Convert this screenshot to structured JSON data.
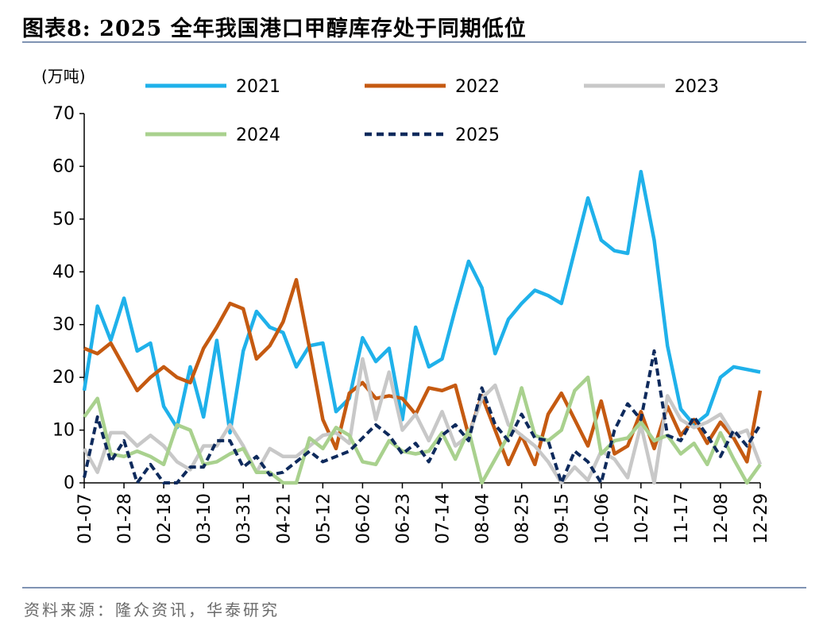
{
  "header": {
    "title": "图表8:   2025 全年我国港口甲醇库存处于同期低位"
  },
  "footer": {
    "source": "资料来源：隆众资讯，华泰研究"
  },
  "colors": {
    "rule": "#7f93b3",
    "s2021": "#1fb1ea",
    "s2022": "#c55a11",
    "s2023": "#c8c8c8",
    "s2024": "#a9d18e",
    "s2025": "#0e2a5c"
  },
  "chart_data": {
    "type": "line",
    "title": "",
    "xlabel": "",
    "ylabel": "(万吨)",
    "ylim": [
      0,
      70
    ],
    "yticks": [
      0,
      10,
      20,
      30,
      40,
      50,
      60,
      70
    ],
    "grid": false,
    "legend_position": "top",
    "x_ticks": [
      "01-07",
      "01-28",
      "02-18",
      "03-10",
      "03-31",
      "04-21",
      "05-12",
      "06-02",
      "06-23",
      "07-14",
      "08-04",
      "08-25",
      "09-15",
      "10-06",
      "10-27",
      "11-17",
      "12-08",
      "12-29"
    ],
    "series": [
      {
        "name": "2021",
        "color": "#1fb1ea",
        "dash": "solid",
        "values": [
          17.5,
          33.5,
          27,
          35,
          25,
          26.5,
          14.5,
          10.5,
          22,
          12.5,
          27,
          9.5,
          25,
          32.5,
          29.5,
          28.5,
          22,
          26,
          26.5,
          13.5,
          16,
          27.5,
          23,
          25.5,
          12,
          29.5,
          22,
          23.5,
          33,
          42,
          37,
          24.5,
          31,
          34,
          36.5,
          35.5,
          34,
          44,
          54,
          46,
          44,
          43.5,
          59,
          46,
          26,
          14,
          11,
          13,
          20,
          22,
          21.5,
          21
        ]
      },
      {
        "name": "2022",
        "color": "#c55a11",
        "dash": "solid",
        "values": [
          25.5,
          24.5,
          26.5,
          22,
          17.5,
          20,
          22,
          20,
          19,
          25.5,
          29.5,
          34,
          33,
          23.5,
          26,
          30.5,
          38.5,
          25.5,
          12,
          6.5,
          17,
          19,
          16,
          16.5,
          16,
          13,
          18,
          17.5,
          18.5,
          9,
          16.5,
          10,
          3.5,
          9,
          3.5,
          13,
          17,
          12,
          7,
          15.5,
          5.5,
          7,
          13.5,
          6.5,
          14.5,
          9,
          12,
          7.5,
          11.5,
          8.5,
          4,
          17.5
        ]
      },
      {
        "name": "2023",
        "color": "#c8c8c8",
        "dash": "solid",
        "values": [
          6.5,
          2,
          9.5,
          9.5,
          7,
          9,
          7,
          4,
          2.5,
          7,
          7,
          11,
          7,
          2,
          6.5,
          5,
          5,
          7,
          9,
          9.5,
          7.5,
          23.5,
          12,
          21,
          10,
          13,
          8,
          13.5,
          7,
          9,
          16,
          18.5,
          11,
          9,
          7,
          4,
          0,
          3,
          0.5,
          6,
          4.5,
          1,
          11,
          0,
          16.5,
          12,
          10.5,
          11.5,
          13,
          9,
          10,
          3.5
        ]
      },
      {
        "name": "2024",
        "color": "#a9d18e",
        "dash": "solid",
        "values": [
          12.5,
          16,
          5.5,
          5,
          6,
          5,
          3.5,
          11,
          10,
          3.5,
          4,
          5.5,
          6.5,
          2,
          2,
          0,
          0,
          8.5,
          6.5,
          10.5,
          9,
          4,
          3.5,
          8,
          6,
          5.5,
          6,
          9.5,
          4.5,
          10,
          0,
          4.5,
          9,
          18,
          9,
          8,
          10,
          17.5,
          20,
          5.5,
          8,
          8.5,
          11.5,
          8,
          9,
          5.5,
          7.5,
          3.5,
          9.5,
          4.5,
          0,
          3.5
        ]
      },
      {
        "name": "2025",
        "color": "#0e2a5c",
        "dash": "dashed",
        "values": [
          1,
          12.5,
          4,
          8,
          0,
          3.5,
          0,
          0,
          3,
          3,
          8,
          8,
          3,
          5,
          1.5,
          2,
          4,
          6,
          4,
          5,
          6,
          8.5,
          11,
          9,
          5.5,
          7.5,
          4,
          9,
          11,
          8,
          18,
          11,
          8,
          13,
          8.5,
          8,
          0,
          6,
          4,
          0,
          10,
          15,
          12,
          25,
          9,
          8,
          12.5,
          9,
          5,
          10,
          7,
          11
        ]
      }
    ]
  }
}
